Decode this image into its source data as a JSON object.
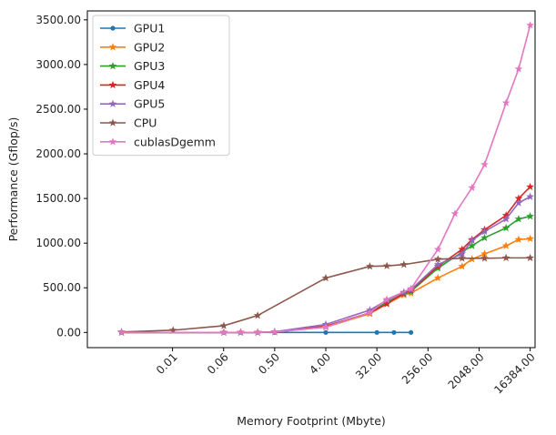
{
  "chart_data": {
    "type": "line",
    "title": "",
    "xlabel": "Memory Footprint (Mbyte)",
    "ylabel": "Performance (Gflop/s)",
    "x_scale": "log2",
    "xlim": [
      0.000244,
      20000
    ],
    "ylim": [
      -170,
      3600
    ],
    "x_ticks": [
      {
        "value": 0.0078125,
        "label": "0.01"
      },
      {
        "value": 0.0625,
        "label": "0.06"
      },
      {
        "value": 0.5,
        "label": "0.50"
      },
      {
        "value": 4,
        "label": "4.00"
      },
      {
        "value": 32,
        "label": "32.00"
      },
      {
        "value": 256,
        "label": "256.00"
      },
      {
        "value": 2048,
        "label": "2048.00"
      },
      {
        "value": 16384,
        "label": "16384.00"
      }
    ],
    "y_ticks": [
      {
        "value": 0,
        "label": "0.00"
      },
      {
        "value": 500,
        "label": "500.00"
      },
      {
        "value": 1000,
        "label": "1000.00"
      },
      {
        "value": 1500,
        "label": "1500.00"
      },
      {
        "value": 2000,
        "label": "2000.00"
      },
      {
        "value": 2500,
        "label": "2500.00"
      },
      {
        "value": 3000,
        "label": "3000.00"
      },
      {
        "value": 3500,
        "label": "3500.00"
      }
    ],
    "grid": false,
    "legend_position": "top-left",
    "series": [
      {
        "name": "GPU1",
        "color": "#1f77b4",
        "marker": "dot",
        "x": [
          0.00098,
          0.063,
          0.125,
          0.25,
          0.5,
          4,
          32,
          64,
          128
        ],
        "y": [
          0,
          0,
          0,
          0,
          0,
          0,
          0,
          0,
          0
        ]
      },
      {
        "name": "GPU2",
        "color": "#ff7f0e",
        "marker": "star",
        "x": [
          0.00098,
          0.063,
          0.125,
          0.25,
          0.5,
          4,
          24,
          48,
          96,
          128,
          384,
          1024,
          1536,
          2560,
          6144,
          10240,
          16384
        ],
        "y": [
          0,
          0,
          0,
          0,
          5,
          60,
          210,
          320,
          420,
          440,
          610,
          740,
          820,
          880,
          970,
          1040,
          1050
        ]
      },
      {
        "name": "GPU3",
        "color": "#2ca02c",
        "marker": "star",
        "x": [
          0.00098,
          0.063,
          0.125,
          0.25,
          0.5,
          4,
          24,
          48,
          96,
          128,
          384,
          1024,
          1536,
          2560,
          6144,
          10240,
          16384
        ],
        "y": [
          0,
          0,
          0,
          0,
          5,
          70,
          220,
          340,
          430,
          460,
          720,
          900,
          970,
          1060,
          1170,
          1270,
          1300
        ]
      },
      {
        "name": "GPU4",
        "color": "#d62728",
        "marker": "star",
        "x": [
          0.00098,
          0.063,
          0.125,
          0.25,
          0.5,
          4,
          24,
          48,
          96,
          128,
          384,
          1024,
          1536,
          2560,
          6144,
          10240,
          16384
        ],
        "y": [
          0,
          0,
          0,
          0,
          5,
          70,
          220,
          320,
          440,
          470,
          740,
          930,
          1040,
          1150,
          1310,
          1500,
          1630
        ]
      },
      {
        "name": "GPU5",
        "color": "#9467bd",
        "marker": "star",
        "x": [
          0.00098,
          0.063,
          0.125,
          0.25,
          0.5,
          4,
          24,
          48,
          96,
          128,
          384,
          1024,
          1536,
          2560,
          6144,
          10240,
          16384
        ],
        "y": [
          0,
          0,
          0,
          0,
          8,
          90,
          250,
          360,
          450,
          480,
          760,
          880,
          1030,
          1130,
          1270,
          1450,
          1520
        ]
      },
      {
        "name": "CPU",
        "color": "#8c564b",
        "marker": "star",
        "x": [
          0.00098,
          0.008,
          0.063,
          0.25,
          4,
          24,
          48,
          96,
          384,
          1024,
          2560,
          6144,
          16384
        ],
        "y": [
          5,
          25,
          75,
          190,
          610,
          740,
          745,
          760,
          820,
          830,
          830,
          835,
          835
        ]
      },
      {
        "name": "cublasDgemm",
        "color": "#e377c2",
        "marker": "star",
        "x": [
          0.00098,
          0.063,
          0.125,
          0.25,
          0.5,
          4,
          24,
          48,
          128,
          384,
          768,
          1536,
          2560,
          6144,
          10240,
          16384
        ],
        "y": [
          0,
          0,
          0,
          0,
          5,
          60,
          220,
          370,
          490,
          930,
          1330,
          1620,
          1880,
          2570,
          2950,
          3440
        ]
      }
    ]
  }
}
